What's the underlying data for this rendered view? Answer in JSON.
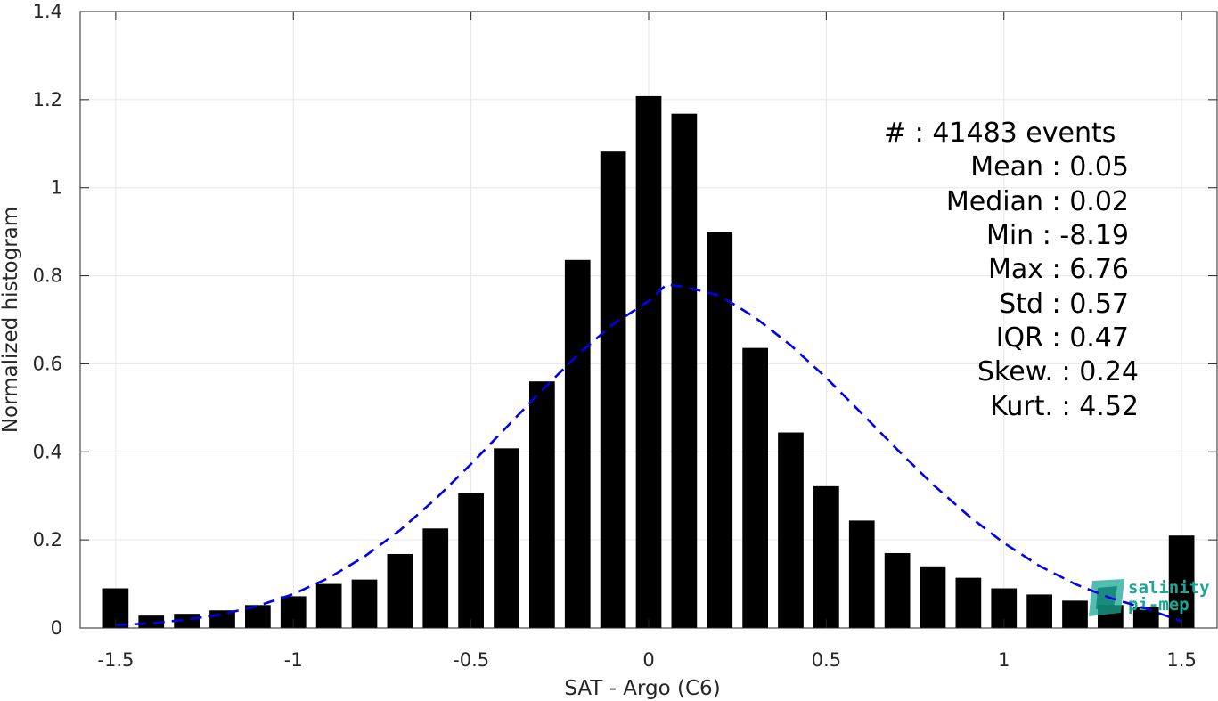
{
  "chart_data": {
    "type": "bar",
    "xlabel": "SAT - Argo (C6)",
    "ylabel": "Normalized histogram",
    "xlim": [
      -1.6,
      1.6
    ],
    "ylim": [
      0,
      1.4
    ],
    "xticks": [
      -1.5,
      -1,
      -0.5,
      0,
      0.5,
      1,
      1.5
    ],
    "xtick_labels": [
      "-1.5",
      "-1",
      "-0.5",
      "0",
      "0.5",
      "1",
      "1.5"
    ],
    "yticks": [
      0,
      0.2,
      0.4,
      0.6,
      0.8,
      1,
      1.2,
      1.4
    ],
    "ytick_labels": [
      "0",
      "0.2",
      "0.4",
      "0.6",
      "0.8",
      "1",
      "1.2",
      "1.4"
    ],
    "grid": true,
    "bar_color": "#000000",
    "curve_color": "#0000ee",
    "bars": {
      "x": [
        -1.5,
        -1.4,
        -1.3,
        -1.2,
        -1.1,
        -1.0,
        -0.9,
        -0.8,
        -0.7,
        -0.6,
        -0.5,
        -0.4,
        -0.3,
        -0.2,
        -0.1,
        0.0,
        0.1,
        0.2,
        0.3,
        0.4,
        0.5,
        0.6,
        0.7,
        0.8,
        0.9,
        1.0,
        1.1,
        1.2,
        1.3,
        1.4,
        1.5
      ],
      "values": [
        0.09,
        0.028,
        0.032,
        0.04,
        0.052,
        0.072,
        0.1,
        0.11,
        0.168,
        0.226,
        0.306,
        0.408,
        0.56,
        0.836,
        1.082,
        1.208,
        1.168,
        0.9,
        0.636,
        0.444,
        0.322,
        0.244,
        0.17,
        0.14,
        0.114,
        0.09,
        0.076,
        0.062,
        0.052,
        0.048,
        0.21
      ]
    },
    "fit_curve": {
      "type": "gaussian",
      "style": "dashed",
      "x": [
        -1.5,
        -1.4,
        -1.3,
        -1.2,
        -1.1,
        -1.0,
        -0.9,
        -0.8,
        -0.7,
        -0.6,
        -0.5,
        -0.4,
        -0.3,
        -0.2,
        -0.1,
        0.0,
        0.05,
        0.1,
        0.2,
        0.3,
        0.4,
        0.5,
        0.6,
        0.7,
        0.8,
        0.9,
        1.0,
        1.1,
        1.2,
        1.3,
        1.4,
        1.5
      ],
      "y": [
        0.006,
        0.011,
        0.019,
        0.031,
        0.05,
        0.077,
        0.114,
        0.162,
        0.222,
        0.293,
        0.372,
        0.456,
        0.54,
        0.62,
        0.69,
        0.742,
        0.78,
        0.775,
        0.755,
        0.705,
        0.642,
        0.568,
        0.487,
        0.405,
        0.326,
        0.255,
        0.193,
        0.141,
        0.1,
        0.068,
        0.044,
        0.015
      ]
    },
    "stats": [
      {
        "label": "#  : 41483 events"
      },
      {
        "label": "Mean : 0.05"
      },
      {
        "label": "Median : 0.02"
      },
      {
        "label": "Min : -8.19"
      },
      {
        "label": "Max : 6.76"
      },
      {
        "label": "Std : 0.57"
      },
      {
        "label": "IQR : 0.47"
      },
      {
        "label": "Skew. : 0.24"
      },
      {
        "label": "Kurt. : 4.52"
      }
    ],
    "logo": {
      "line1": "salinity",
      "line2": "pi-mep",
      "color": "#1aa795"
    }
  }
}
